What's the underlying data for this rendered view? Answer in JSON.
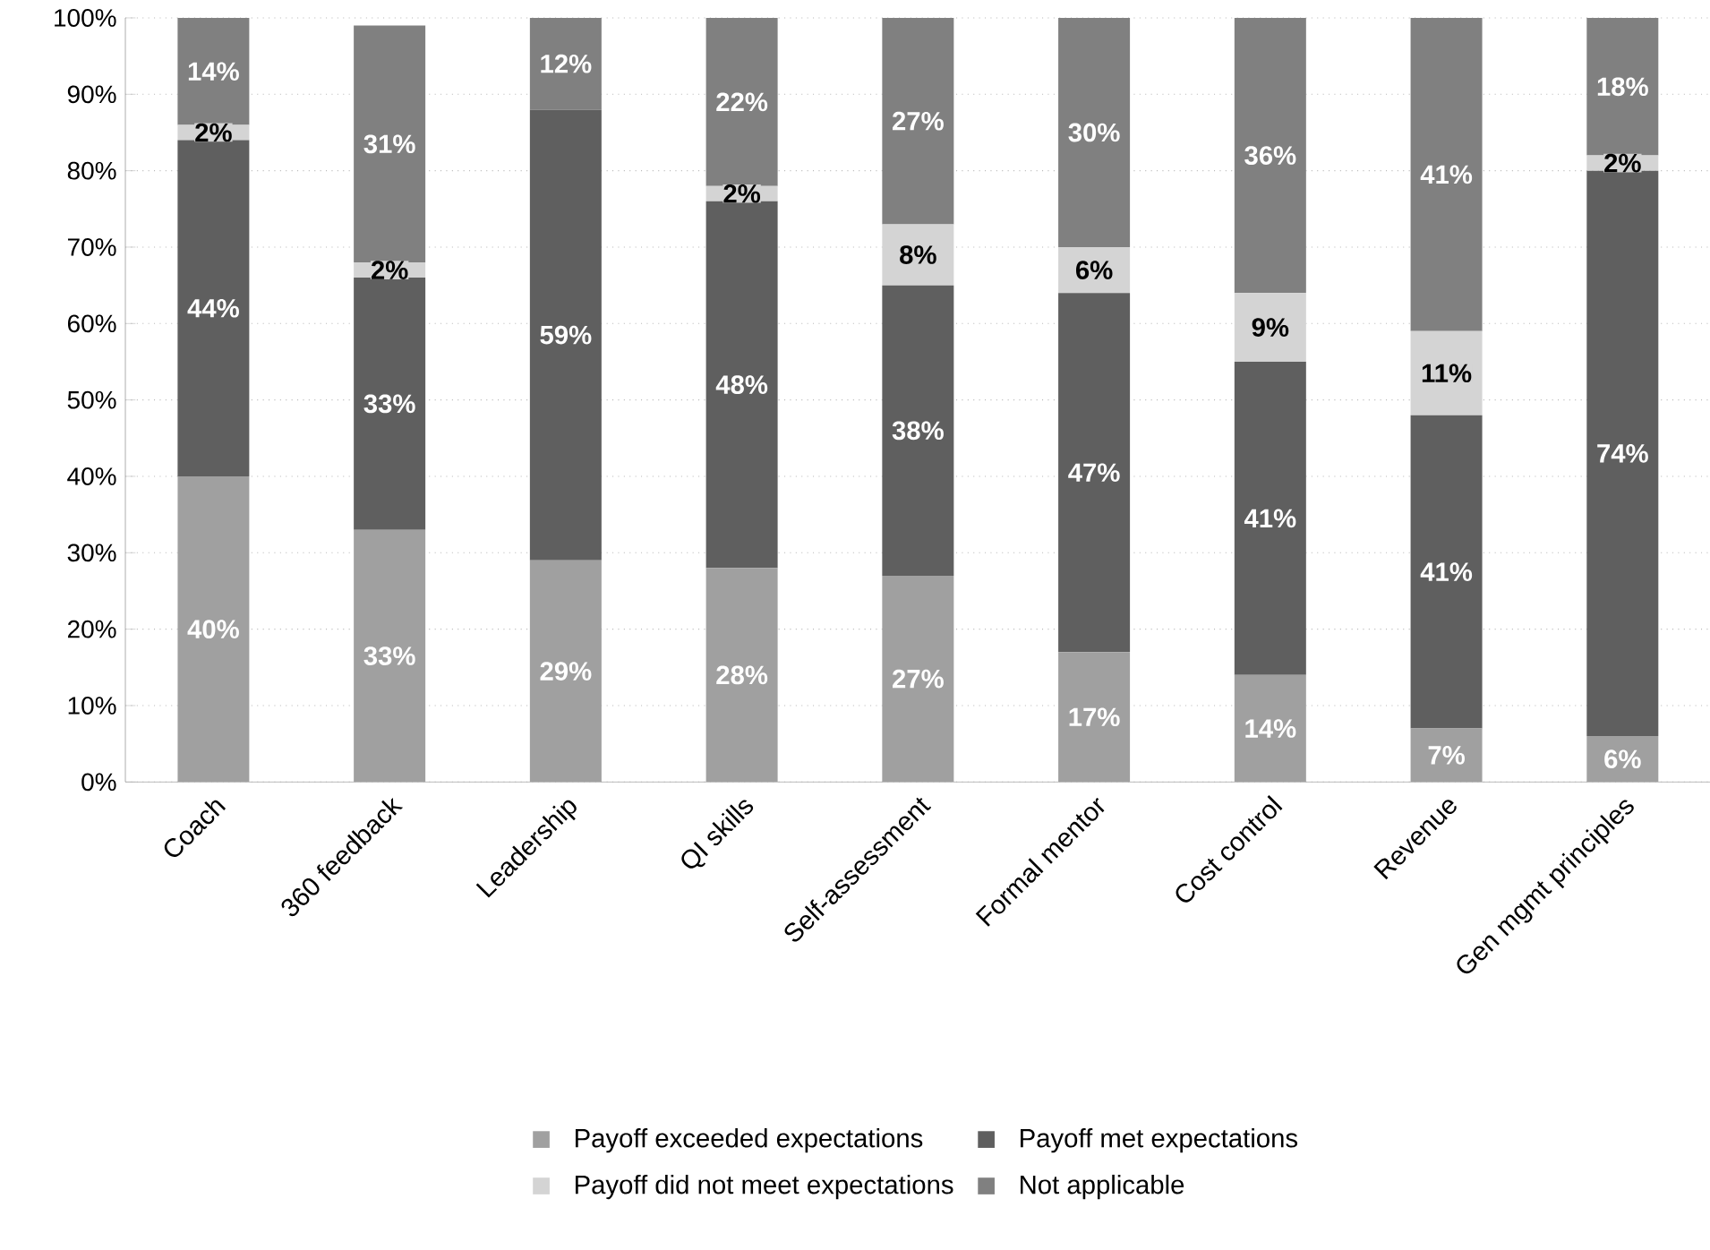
{
  "chart_data": {
    "type": "bar",
    "stacked": true,
    "categories": [
      "Coach",
      "360 feedback",
      "Leadership",
      "QI skills",
      "Self-assessment",
      "Formal mentor",
      "Cost control",
      "Revenue",
      "Gen mgmt principles"
    ],
    "series": [
      {
        "name": "Payoff exceeded expectations",
        "color": "#a0a0a0",
        "values": [
          40,
          33,
          29,
          28,
          27,
          17,
          14,
          7,
          6
        ],
        "value_labels": [
          "40%",
          "33%",
          "29%",
          "28%",
          "27%",
          "17%",
          "14%",
          "7%",
          "6%"
        ]
      },
      {
        "name": "Payoff met expectations",
        "color": "#5f5f5f",
        "values": [
          44,
          33,
          59,
          48,
          38,
          47,
          41,
          41,
          74
        ],
        "value_labels": [
          "44%",
          "33%",
          "59%",
          "48%",
          "38%",
          "47%",
          "41%",
          "41%",
          "74%"
        ]
      },
      {
        "name": "Payoff did not meet expectations",
        "color": "#d4d4d4",
        "values": [
          2,
          2,
          0,
          2,
          8,
          6,
          9,
          11,
          2
        ],
        "value_labels": [
          "2%",
          "2%",
          null,
          "2%",
          "8%",
          "6%",
          "9%",
          "11%",
          "2%"
        ]
      },
      {
        "name": "Not applicable",
        "color": "#808080",
        "values": [
          14,
          31,
          12,
          22,
          27,
          30,
          36,
          41,
          18
        ],
        "value_labels": [
          "14%",
          "31%",
          "12%",
          "22%",
          "27%",
          "30%",
          "36%",
          "41%",
          "18%"
        ]
      }
    ],
    "ylim": [
      0,
      100
    ],
    "yticks": [
      {
        "value": 0,
        "label": "0%"
      },
      {
        "value": 10,
        "label": "10%"
      },
      {
        "value": 20,
        "label": "20%"
      },
      {
        "value": 30,
        "label": "30%"
      },
      {
        "value": 40,
        "label": "40%"
      },
      {
        "value": 50,
        "label": "50%"
      },
      {
        "value": 60,
        "label": "60%"
      },
      {
        "value": 70,
        "label": "70%"
      },
      {
        "value": 80,
        "label": "80%"
      },
      {
        "value": 90,
        "label": "90%"
      },
      {
        "value": 100,
        "label": "100%"
      }
    ],
    "grid": "y",
    "legend": "bottom"
  }
}
